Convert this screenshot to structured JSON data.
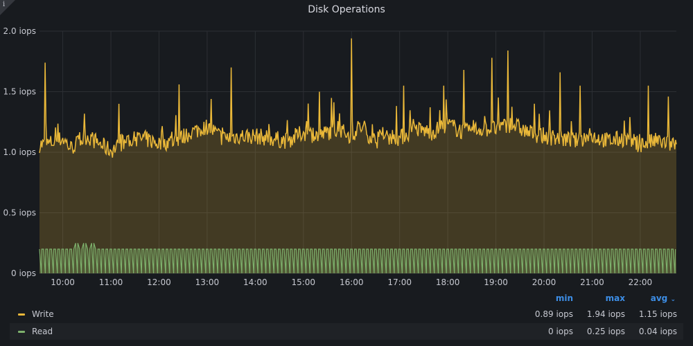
{
  "panel": {
    "title": "Disk Operations",
    "info_icon": "info-icon"
  },
  "chart_data": {
    "type": "area",
    "title": "Disk Operations",
    "y_unit": "iops",
    "ylim": [
      0,
      2.0
    ],
    "yticks": [
      "0 iops",
      "0.5 iops",
      "1.0 iops",
      "1.5 iops",
      "2.0 iops"
    ],
    "ytick_values": [
      0,
      0.5,
      1.0,
      1.5,
      2.0
    ],
    "x_range": [
      "09:31",
      "22:45"
    ],
    "xticks": [
      "10:00",
      "11:00",
      "12:00",
      "13:00",
      "14:00",
      "15:00",
      "16:00",
      "17:00",
      "18:00",
      "19:00",
      "20:00",
      "21:00",
      "22:00"
    ],
    "grid": true,
    "legend_placement": "bottom",
    "colors": {
      "Write": "#eab839",
      "Read": "#7eb26d"
    },
    "series": [
      {
        "name": "Write",
        "x": [
          "09:40",
          "10:00",
          "10:10",
          "10:30",
          "11:00",
          "11:20",
          "11:40",
          "12:00",
          "12:20",
          "12:40",
          "13:00",
          "13:20",
          "13:40",
          "14:00",
          "14:20",
          "14:40",
          "15:00",
          "15:20",
          "15:40",
          "16:00",
          "16:10",
          "16:30",
          "16:50",
          "17:00",
          "17:20",
          "17:40",
          "18:00",
          "18:20",
          "18:40",
          "19:00",
          "19:20",
          "19:40",
          "20:00",
          "20:20",
          "20:40",
          "21:00",
          "21:20",
          "21:40",
          "22:00",
          "22:20",
          "22:40"
        ],
        "values": [
          1.05,
          1.1,
          1.02,
          1.12,
          1.0,
          1.08,
          1.1,
          1.06,
          1.08,
          1.15,
          1.2,
          1.1,
          1.12,
          1.12,
          1.1,
          1.08,
          1.15,
          1.12,
          1.18,
          1.12,
          1.2,
          1.08,
          1.12,
          1.1,
          1.18,
          1.15,
          1.22,
          1.15,
          1.18,
          1.18,
          1.22,
          1.15,
          1.12,
          1.1,
          1.08,
          1.12,
          1.08,
          1.1,
          1.05,
          1.08,
          1.05
        ],
        "peaks": [
          {
            "x": "09:38",
            "y": 1.74
          },
          {
            "x": "11:10",
            "y": 1.4
          },
          {
            "x": "12:25",
            "y": 1.56
          },
          {
            "x": "13:05",
            "y": 1.44
          },
          {
            "x": "13:30",
            "y": 1.7
          },
          {
            "x": "15:20",
            "y": 1.5
          },
          {
            "x": "16:00",
            "y": 1.94
          },
          {
            "x": "17:05",
            "y": 1.55
          },
          {
            "x": "17:55",
            "y": 1.55
          },
          {
            "x": "18:20",
            "y": 1.68
          },
          {
            "x": "18:55",
            "y": 1.78
          },
          {
            "x": "19:15",
            "y": 1.84
          },
          {
            "x": "20:20",
            "y": 1.66
          },
          {
            "x": "20:45",
            "y": 1.55
          },
          {
            "x": "22:10",
            "y": 1.55
          },
          {
            "x": "22:35",
            "y": 1.46
          }
        ]
      },
      {
        "name": "Read",
        "pattern": "square-pulse",
        "pulse_period_min": 5,
        "high": 0.2,
        "low": 0.0,
        "spikes": [
          {
            "x": "10:15",
            "y": 0.25
          },
          {
            "x": "10:25",
            "y": 0.25
          },
          {
            "x": "10:35",
            "y": 0.25
          }
        ]
      }
    ]
  },
  "legend": {
    "headers": {
      "min": "min",
      "max": "max",
      "avg": "avg"
    },
    "avg_sort_icon": "chevron-down-icon",
    "rows": [
      {
        "name": "Write",
        "color": "#eab839",
        "min": "0.89 iops",
        "max": "1.94 iops",
        "avg": "1.15 iops"
      },
      {
        "name": "Read",
        "color": "#7eb26d",
        "min": "0 iops",
        "max": "0.25 iops",
        "avg": "0.04 iops"
      }
    ]
  }
}
